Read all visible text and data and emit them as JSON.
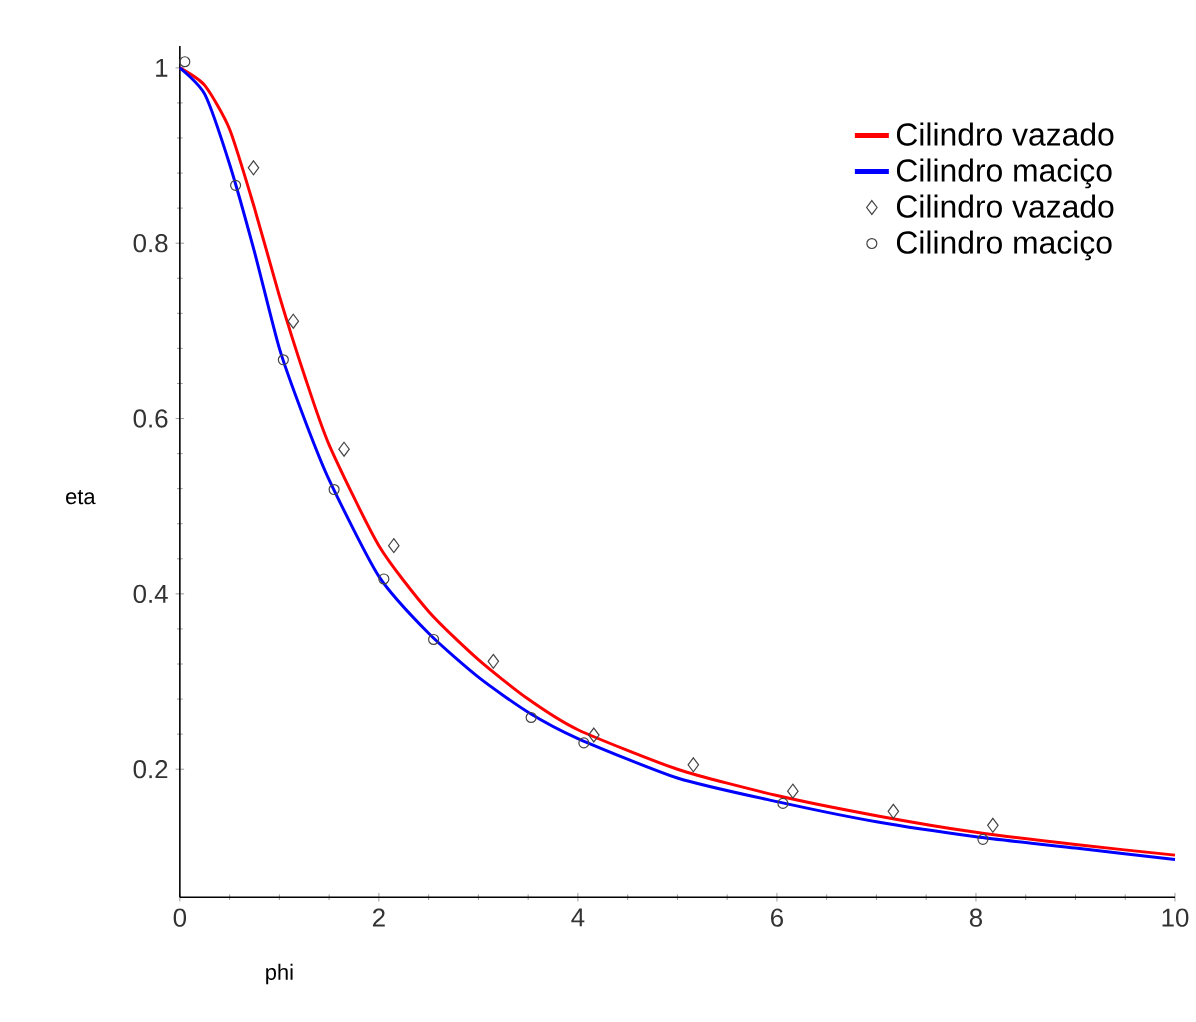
{
  "chart_data": {
    "type": "line",
    "xlabel": "phi",
    "ylabel": "eta",
    "xlim": [
      0,
      10
    ],
    "ylim": [
      0.054,
      1.025
    ],
    "xticks": [
      0,
      2,
      4,
      6,
      8,
      10
    ],
    "yticks": [
      0.2,
      0.4,
      0.6,
      0.8,
      1
    ],
    "legend": "top right",
    "grid": false,
    "series": [
      {
        "name": "Cilindro vazado",
        "color": "#ff0000",
        "marker": "none",
        "x": [
          0,
          0.25,
          0.5,
          0.75,
          1,
          1.25,
          1.5,
          2,
          2.5,
          3,
          3.5,
          4,
          5,
          6,
          7,
          8,
          9,
          10
        ],
        "values": [
          1,
          0.98,
          0.93,
          0.84,
          0.74,
          0.65,
          0.57,
          0.455,
          0.38,
          0.325,
          0.28,
          0.245,
          0.2,
          0.17,
          0.147,
          0.128,
          0.114,
          0.102
        ]
      },
      {
        "name": "Cilindro maciço",
        "color": "#0000ff",
        "marker": "none",
        "x": [
          0,
          0.25,
          0.5,
          0.75,
          1,
          1.25,
          1.5,
          2,
          2.5,
          3,
          3.5,
          4,
          5,
          6,
          7,
          8,
          9,
          10
        ],
        "values": [
          1,
          0.97,
          0.89,
          0.79,
          0.68,
          0.6,
          0.53,
          0.42,
          0.355,
          0.305,
          0.265,
          0.235,
          0.19,
          0.163,
          0.14,
          0.123,
          0.11,
          0.097
        ]
      },
      {
        "name": "Cilindro vazado",
        "type": "scatter",
        "color": "#444444",
        "marker": "diamond",
        "x": [
          0.74,
          1.14,
          1.65,
          2.15,
          3.15,
          4.16,
          5.16,
          6.16,
          7.17,
          8.17
        ],
        "values": [
          0.886,
          0.711,
          0.565,
          0.455,
          0.323,
          0.239,
          0.205,
          0.175,
          0.152,
          0.136
        ]
      },
      {
        "name": "Cilindro maciço",
        "type": "scatter",
        "color": "#444444",
        "marker": "circle",
        "x": [
          0.05,
          0.56,
          1.04,
          1.55,
          2.05,
          2.55,
          3.53,
          4.06,
          6.06,
          8.07
        ],
        "values": [
          1.007,
          0.866,
          0.667,
          0.519,
          0.417,
          0.348,
          0.259,
          0.23,
          0.161,
          0.12
        ]
      }
    ]
  }
}
